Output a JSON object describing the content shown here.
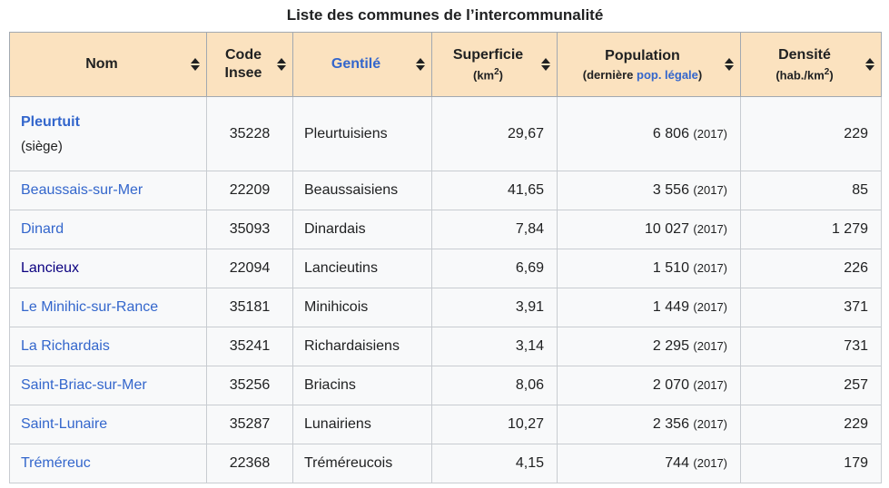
{
  "title": "Liste des communes de l’intercommunalité",
  "colors": {
    "header_bg": "#fbe2bf",
    "row_bg": "#f8f9fa",
    "border_outer": "#a2a9b1",
    "border_inner": "#c8ccd1",
    "link": "#3366cc",
    "link_visited": "#0b0080",
    "text": "#202122"
  },
  "table": {
    "columns": [
      {
        "label": "Nom"
      },
      {
        "label": "Code\nInsee"
      },
      {
        "label": "Gentilé",
        "label_link": true
      },
      {
        "label": "Superficie",
        "sub_pre": "(km",
        "sub_sup": "2",
        "sub_post": ")"
      },
      {
        "label": "Population",
        "sub_pre": "(dernière ",
        "sub_link": "pop. légale",
        "sub_post": ")"
      },
      {
        "label": "Densité",
        "sub_pre": "(hab./km",
        "sub_sup": "2",
        "sub_post": ")"
      }
    ],
    "rows": [
      {
        "name": "Pleurtuit",
        "bold": true,
        "siege_label": "(siège)",
        "code": "35228",
        "gentile": "Pleurtuisiens",
        "superficie": "29,67",
        "population": "6 806",
        "pop_year": "(2017)",
        "densite": "229"
      },
      {
        "name": "Beaussais-sur-Mer",
        "code": "22209",
        "gentile": "Beaussaisiens",
        "superficie": "41,65",
        "population": "3 556",
        "pop_year": "(2017)",
        "densite": "85"
      },
      {
        "name": "Dinard",
        "code": "35093",
        "gentile": "Dinardais",
        "superficie": "7,84",
        "population": "10 027",
        "pop_year": "(2017)",
        "densite": "1 279"
      },
      {
        "name": "Lancieux",
        "visited": true,
        "code": "22094",
        "gentile": "Lancieutins",
        "superficie": "6,69",
        "population": "1 510",
        "pop_year": "(2017)",
        "densite": "226"
      },
      {
        "name": "Le Minihic-sur-Rance",
        "code": "35181",
        "gentile": "Minihicois",
        "superficie": "3,91",
        "population": "1 449",
        "pop_year": "(2017)",
        "densite": "371"
      },
      {
        "name": "La Richardais",
        "code": "35241",
        "gentile": "Richardaisiens",
        "superficie": "3,14",
        "population": "2 295",
        "pop_year": "(2017)",
        "densite": "731"
      },
      {
        "name": "Saint-Briac-sur-Mer",
        "code": "35256",
        "gentile": "Briacins",
        "superficie": "8,06",
        "population": "2 070",
        "pop_year": "(2017)",
        "densite": "257"
      },
      {
        "name": "Saint-Lunaire",
        "code": "35287",
        "gentile": "Lunairiens",
        "superficie": "10,27",
        "population": "2 356",
        "pop_year": "(2017)",
        "densite": "229"
      },
      {
        "name": "Tréméreuc",
        "code": "22368",
        "gentile": "Tréméreucois",
        "superficie": "4,15",
        "population": "744",
        "pop_year": "(2017)",
        "densite": "179"
      }
    ]
  }
}
